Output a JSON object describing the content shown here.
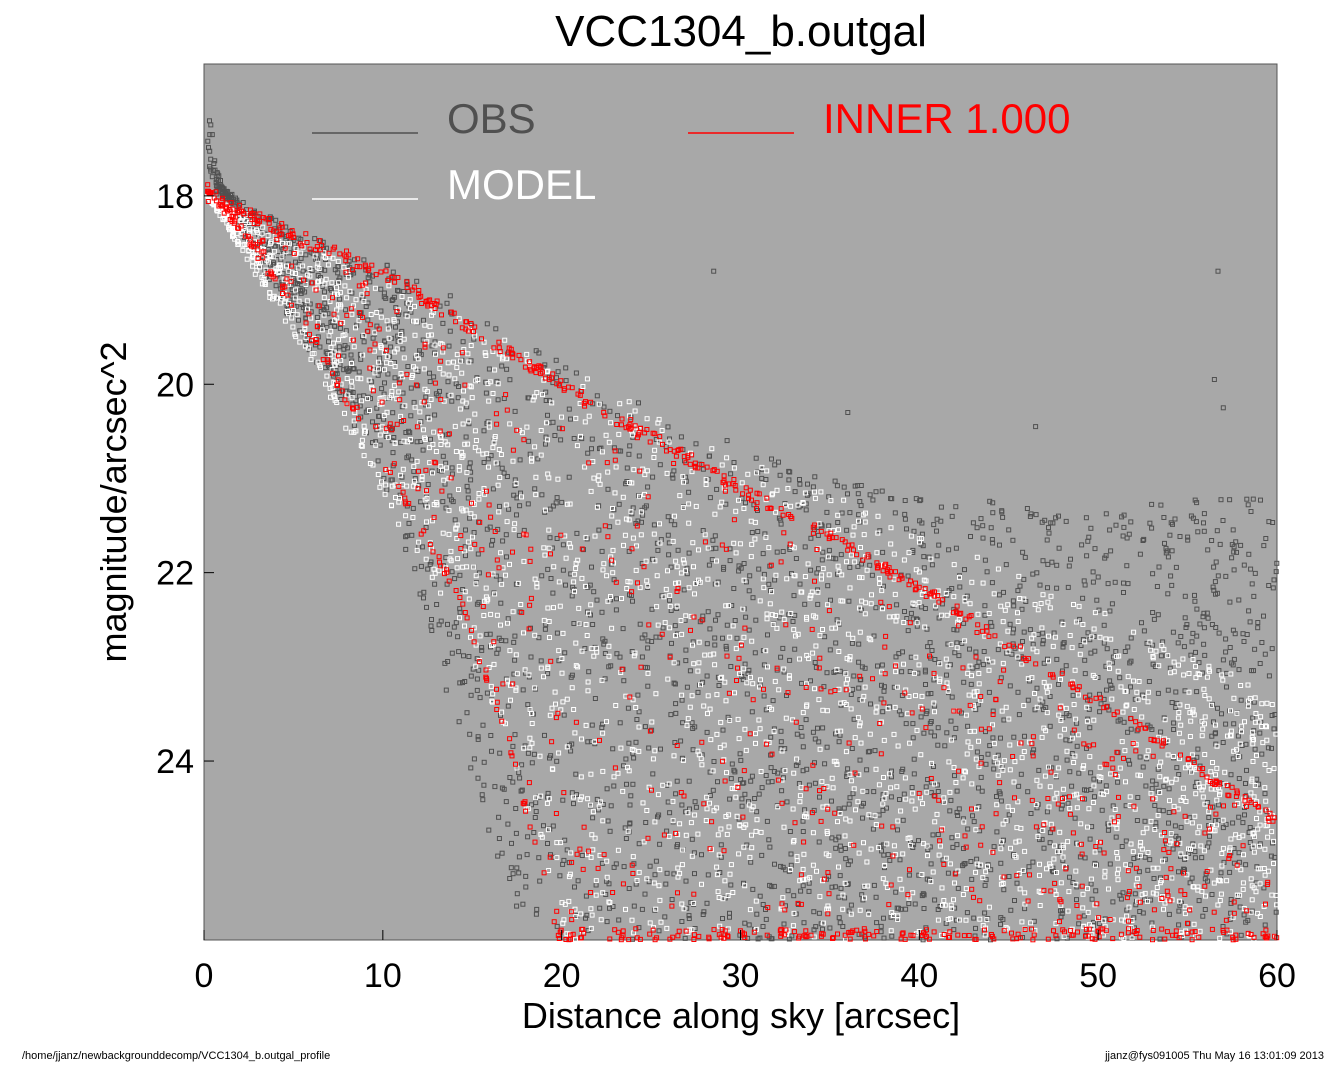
{
  "chart_data": {
    "type": "scatter",
    "title": "VCC1304_b.outgal",
    "xlabel": "Distance along sky [arcsec]",
    "ylabel": "magnitude/arcsec^2",
    "xlim": [
      0,
      60
    ],
    "ylim": [
      16.6,
      25.9
    ],
    "y_inverted": true,
    "x_ticks": [
      "0",
      "10",
      "20",
      "30",
      "40",
      "50",
      "60"
    ],
    "x_tick_values": [
      0,
      10,
      20,
      30,
      40,
      50,
      60
    ],
    "y_ticks": [
      "18",
      "20",
      "22",
      "24"
    ],
    "y_tick_values": [
      18,
      20,
      22,
      24
    ],
    "legend": [
      {
        "label": "OBS",
        "color": "#505050"
      },
      {
        "label": "MODEL",
        "color": "#ffffff"
      },
      {
        "label": "INNER  1.000",
        "color": "#ff0000"
      }
    ],
    "series": [
      {
        "name": "OBS",
        "marker": "open-square",
        "color": "#505050",
        "upper_envelope": [
          [
            0.2,
            16.9
          ],
          [
            0.5,
            17.4
          ],
          [
            1,
            17.9
          ],
          [
            2,
            18.05
          ],
          [
            5,
            18.35
          ],
          [
            8,
            18.6
          ],
          [
            10,
            18.7
          ],
          [
            13,
            18.95
          ],
          [
            16,
            19.35
          ],
          [
            20,
            19.75
          ],
          [
            25,
            20.25
          ],
          [
            30,
            20.65
          ],
          [
            35,
            21.0
          ],
          [
            40,
            21.2
          ],
          [
            45,
            21.25
          ],
          [
            50,
            21.3
          ],
          [
            55,
            21.2
          ],
          [
            60,
            21.2
          ]
        ],
        "lower_envelope": [
          [
            1,
            18.0
          ],
          [
            5,
            19.4
          ],
          [
            8,
            20.3
          ],
          [
            10,
            21.0
          ],
          [
            12,
            22.2
          ],
          [
            14,
            23.6
          ],
          [
            16,
            24.8
          ],
          [
            18,
            25.9
          ],
          [
            60,
            25.9
          ]
        ],
        "outliers": [
          [
            28.5,
            18.8
          ],
          [
            56.7,
            18.8
          ],
          [
            56.5,
            19.95
          ],
          [
            36.0,
            20.3
          ],
          [
            46.5,
            20.45
          ],
          [
            57.0,
            20.25
          ]
        ]
      },
      {
        "name": "MODEL",
        "marker": "open-square",
        "color": "#ffffff",
        "upper_envelope": [
          [
            0.2,
            18.0
          ],
          [
            10,
            18.9
          ],
          [
            20,
            19.8
          ],
          [
            30,
            20.75
          ],
          [
            40,
            21.55
          ],
          [
            50,
            22.4
          ],
          [
            60,
            23.3
          ]
        ],
        "lower_envelope": [
          [
            0.2,
            18.0
          ],
          [
            5,
            19.5
          ],
          [
            10,
            21.2
          ],
          [
            14,
            22.5
          ],
          [
            17,
            23.8
          ],
          [
            20,
            25.9
          ]
        ]
      },
      {
        "name": "INNER  1.000",
        "marker": "open-square",
        "color": "#ff0000",
        "upper_envelope": [
          [
            0.2,
            17.95
          ],
          [
            10,
            18.75
          ],
          [
            20,
            19.95
          ],
          [
            30,
            21.05
          ],
          [
            40,
            22.1
          ],
          [
            50,
            23.3
          ],
          [
            60,
            24.6
          ]
        ],
        "lower_envelope": [
          [
            0.2,
            17.95
          ],
          [
            5,
            19.2
          ],
          [
            10,
            20.9
          ],
          [
            14,
            22.2
          ],
          [
            17,
            23.8
          ],
          [
            19.7,
            25.9
          ]
        ]
      }
    ]
  },
  "footer": {
    "path": "/home/jjanz/newbackgrounddecomp/VCC1304_b.outgal_profile",
    "stamp": "jjanz@fys091005  Thu May 16 13:01:09 2013"
  }
}
